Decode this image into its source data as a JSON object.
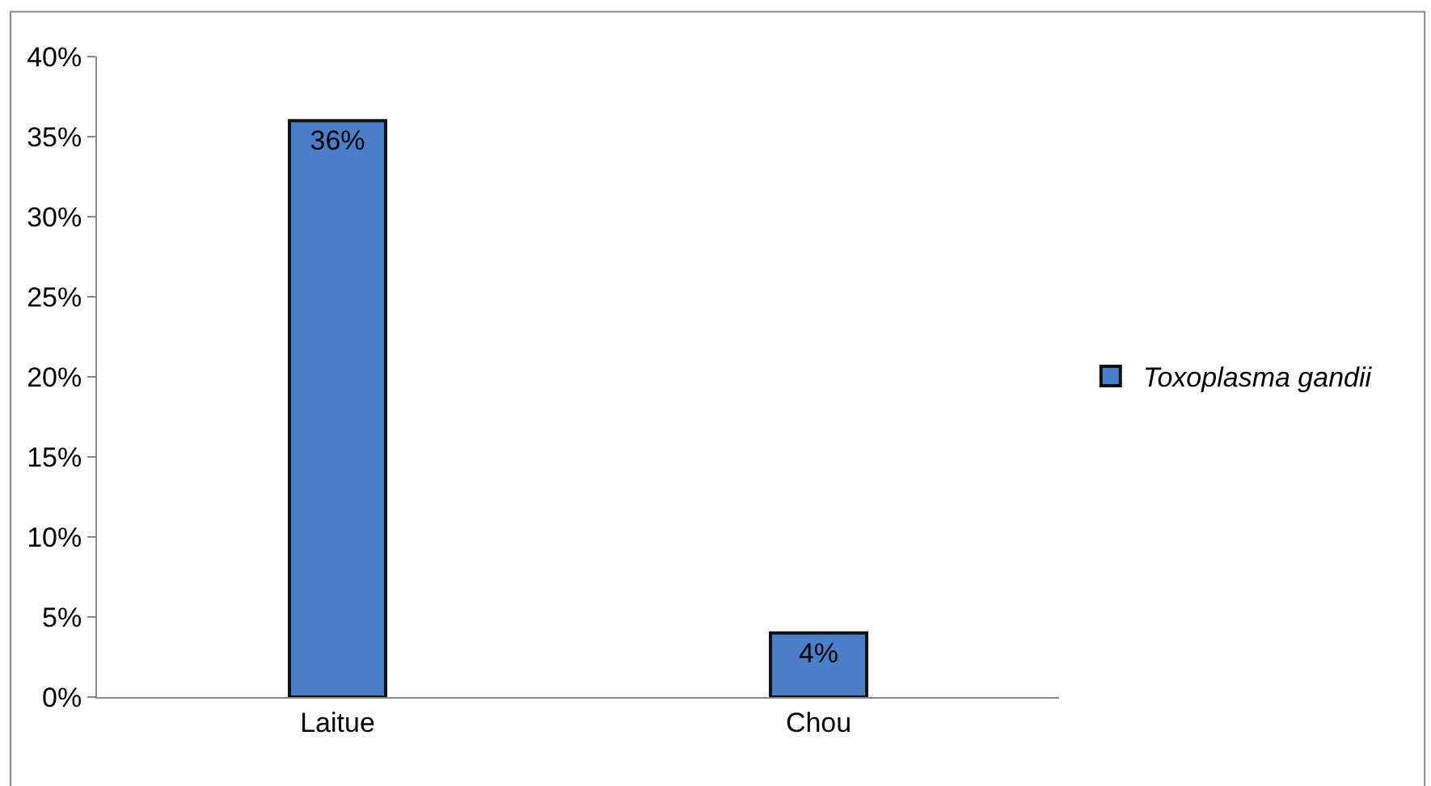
{
  "chart_data": {
    "type": "bar",
    "categories": [
      "Laitue",
      "Chou"
    ],
    "series": [
      {
        "name": "Toxoplasma gandii",
        "color": "#4a7ec8",
        "values": [
          36,
          4
        ],
        "value_labels": [
          "36%",
          "4%"
        ]
      }
    ],
    "ylim": [
      0,
      40
    ],
    "yticks": [
      {
        "value": 0,
        "label": "0%"
      },
      {
        "value": 5,
        "label": "5%"
      },
      {
        "value": 10,
        "label": "10%"
      },
      {
        "value": 15,
        "label": "15%"
      },
      {
        "value": 20,
        "label": "20%"
      },
      {
        "value": 25,
        "label": "25%"
      },
      {
        "value": 30,
        "label": "30%"
      },
      {
        "value": 35,
        "label": "35%"
      },
      {
        "value": 40,
        "label": "40%"
      }
    ],
    "legend": "right"
  }
}
